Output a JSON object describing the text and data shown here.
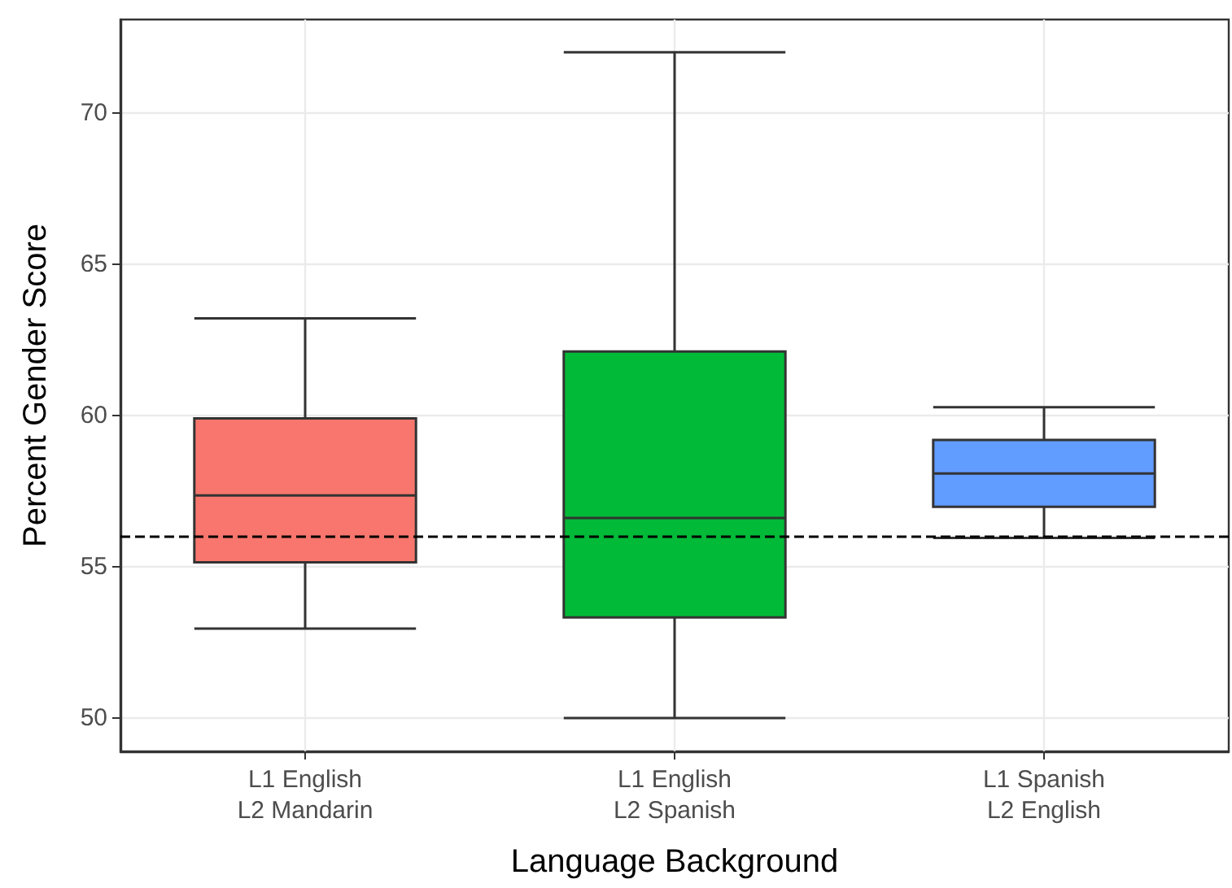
{
  "chart_data": {
    "type": "box",
    "xlabel": "Language Background",
    "ylabel": "Percent Gender Score",
    "categories": [
      "L1 English\nL2 Mandarin",
      "L1 English\nL2 Spanish",
      "L1 Spanish\nL2 English"
    ],
    "colors": [
      "#f8766d",
      "#00ba38",
      "#619cff"
    ],
    "boxes": [
      {
        "low": 52.96,
        "q1": 55.15,
        "median": 57.36,
        "q3": 59.91,
        "high": 63.22
      },
      {
        "low": 50.0,
        "q1": 53.33,
        "median": 56.62,
        "q3": 62.12,
        "high": 72.02
      },
      {
        "low": 55.96,
        "q1": 56.99,
        "median": 58.09,
        "q3": 59.2,
        "high": 60.28
      }
    ],
    "ylim": [
      48.9,
      73.1
    ],
    "yticks": [
      50,
      55,
      60,
      65,
      70
    ],
    "grid": true,
    "ref_lines": [
      {
        "axis": "y",
        "value": 56.0,
        "line_style": "dashed",
        "color": "#000000"
      }
    ]
  }
}
